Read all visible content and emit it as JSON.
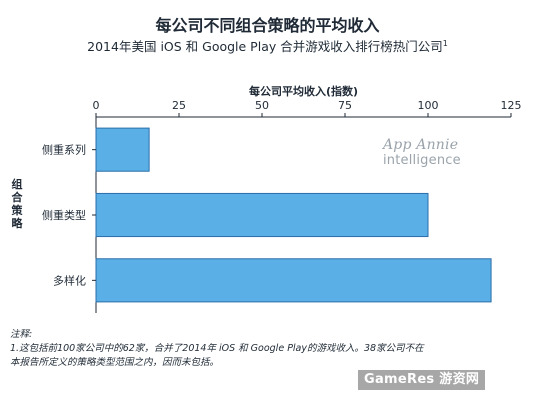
{
  "chart_data": {
    "type": "bar",
    "orientation": "horizontal",
    "title": "每公司不同组合策略的平均收入",
    "subtitle": "2014年美国 iOS 和 Google Play 合并游戏收入排行榜热门公司",
    "subtitle_note": "1",
    "xlabel": "每公司平均收入(指数)",
    "ylabel": "组合策略",
    "categories": [
      "侧重系列",
      "侧重类型",
      "多样化"
    ],
    "values": [
      16,
      100,
      119
    ],
    "xlim": [
      0,
      125
    ],
    "xticks": [
      "0",
      "25",
      "50",
      "75",
      "100",
      "125"
    ],
    "bar_color": "#5ab0e6",
    "bar_edge_color": "#2b6ea8",
    "grid": false
  },
  "watermark": {
    "brand": "App Annie",
    "suffix": "intelligence"
  },
  "footnote": {
    "head": "注释:",
    "text": "1.这包括前100家公司中的62家，合并了2014年 iOS 和 Google Play的游戏收入。38家公司不在本报告所定义的策略类型范围之内，因而未包括。"
  },
  "site_logo": "GameRes 游资网"
}
